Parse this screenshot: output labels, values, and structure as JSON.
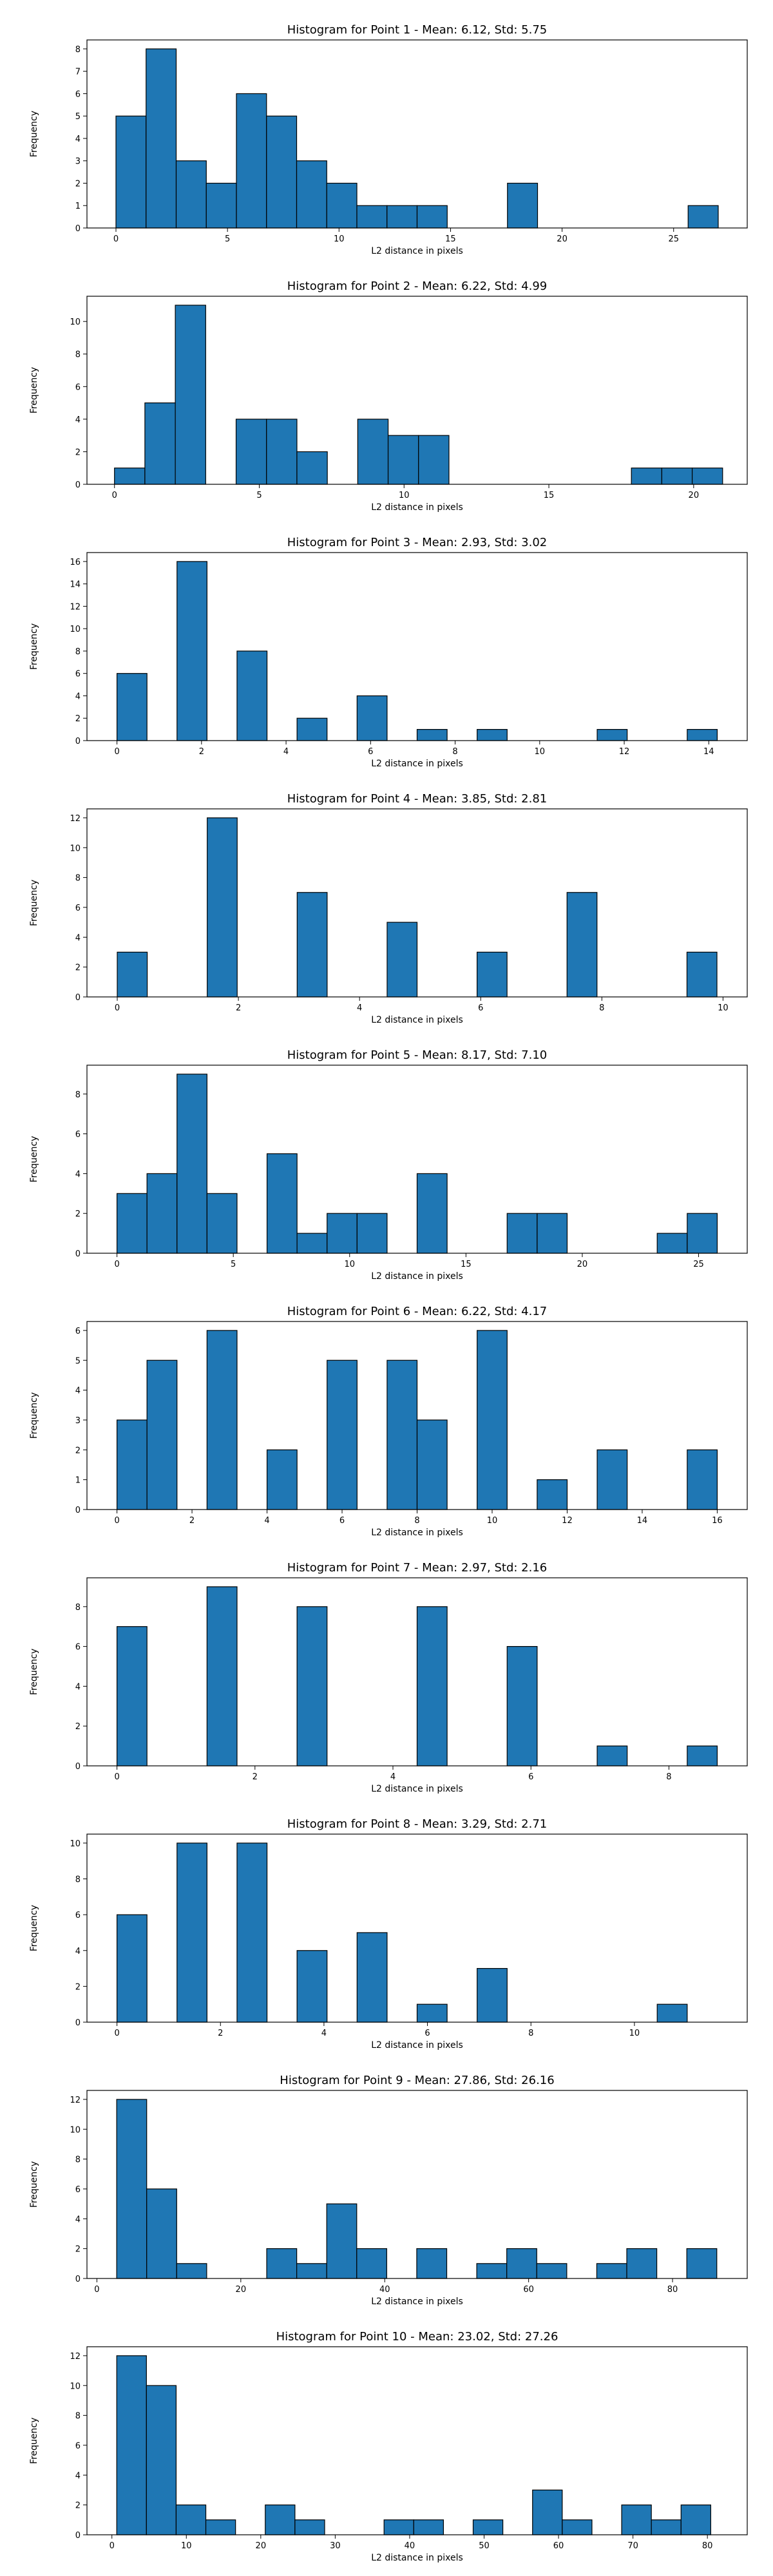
{
  "style": {
    "bar_color": "#1f77b4",
    "edge_color": "#000000",
    "background": "#ffffff"
  },
  "chart_data": [
    {
      "type": "bar",
      "subtype": "histogram",
      "title": "Histogram for Point 1 - Mean: 6.12, Std: 5.75",
      "xlabel": "L2 distance in pixels",
      "ylabel": "Frequency",
      "xlim": [
        -1.3,
        28.3
      ],
      "ylim": [
        0,
        8.4
      ],
      "xticks": [
        0,
        5,
        10,
        15,
        20,
        25
      ],
      "yticks": [
        0,
        1,
        2,
        3,
        4,
        5,
        6,
        7,
        8
      ],
      "bin_start": 0.0,
      "bin_width": 1.35,
      "values": [
        5,
        8,
        3,
        2,
        6,
        5,
        3,
        2,
        1,
        1,
        1,
        0,
        0,
        2,
        0,
        0,
        0,
        0,
        0,
        1
      ]
    },
    {
      "type": "bar",
      "subtype": "histogram",
      "title": "Histogram for Point 2 - Mean: 6.22, Std: 4.99",
      "xlabel": "L2 distance in pixels",
      "ylabel": "Frequency",
      "xlim": [
        -0.95,
        21.85
      ],
      "ylim": [
        0,
        11.55
      ],
      "xticks": [
        0,
        5,
        10,
        15,
        20
      ],
      "yticks": [
        0,
        2,
        4,
        6,
        8,
        10
      ],
      "bin_start": 0.0,
      "bin_width": 1.05,
      "values": [
        1,
        5,
        11,
        0,
        4,
        4,
        2,
        0,
        4,
        3,
        3,
        0,
        0,
        0,
        0,
        0,
        0,
        1,
        1,
        1
      ]
    },
    {
      "type": "bar",
      "subtype": "histogram",
      "title": "Histogram for Point 3 - Mean: 2.93, Std: 3.02",
      "xlabel": "L2 distance in pixels",
      "ylabel": "Frequency",
      "xlim": [
        -0.71,
        14.91
      ],
      "ylim": [
        0,
        16.8
      ],
      "xticks": [
        0,
        2,
        4,
        6,
        8,
        10,
        12,
        14
      ],
      "yticks": [
        0,
        2,
        4,
        6,
        8,
        10,
        12,
        14,
        16
      ],
      "bin_start": 0.0,
      "bin_width": 0.71,
      "values": [
        6,
        0,
        16,
        0,
        8,
        0,
        2,
        0,
        4,
        0,
        1,
        0,
        1,
        0,
        0,
        0,
        1,
        0,
        0,
        1
      ]
    },
    {
      "type": "bar",
      "subtype": "histogram",
      "title": "Histogram for Point 4 - Mean: 3.85, Std: 2.81",
      "xlabel": "L2 distance in pixels",
      "ylabel": "Frequency",
      "xlim": [
        -0.5,
        10.4
      ],
      "ylim": [
        0,
        12.6
      ],
      "xticks": [
        0,
        2,
        4,
        6,
        8,
        10
      ],
      "yticks": [
        0,
        2,
        4,
        6,
        8,
        10,
        12
      ],
      "bin_start": 0.0,
      "bin_width": 0.495,
      "values": [
        3,
        0,
        0,
        12,
        0,
        0,
        7,
        0,
        0,
        5,
        0,
        0,
        3,
        0,
        0,
        7,
        0,
        0,
        0,
        3
      ]
    },
    {
      "type": "bar",
      "subtype": "histogram",
      "title": "Histogram for Point 5 - Mean: 8.17, Std: 7.10",
      "xlabel": "L2 distance in pixels",
      "ylabel": "Frequency",
      "xlim": [
        -1.29,
        27.09
      ],
      "ylim": [
        0,
        9.45
      ],
      "xticks": [
        0,
        5,
        10,
        15,
        20,
        25
      ],
      "yticks": [
        0,
        2,
        4,
        6,
        8
      ],
      "bin_start": 0.0,
      "bin_width": 1.29,
      "values": [
        3,
        4,
        9,
        3,
        0,
        5,
        1,
        2,
        2,
        0,
        4,
        0,
        0,
        2,
        2,
        0,
        0,
        0,
        1,
        2
      ]
    },
    {
      "type": "bar",
      "subtype": "histogram",
      "title": "Histogram for Point 6 - Mean: 6.22, Std: 4.17",
      "xlabel": "L2 distance in pixels",
      "ylabel": "Frequency",
      "xlim": [
        -0.8,
        16.8
      ],
      "ylim": [
        0,
        6.3
      ],
      "xticks": [
        0,
        2,
        4,
        6,
        8,
        10,
        12,
        14,
        16
      ],
      "yticks": [
        0,
        1,
        2,
        3,
        4,
        5,
        6
      ],
      "bin_start": 0.0,
      "bin_width": 0.8,
      "values": [
        3,
        5,
        0,
        6,
        0,
        2,
        0,
        5,
        0,
        5,
        3,
        0,
        6,
        0,
        1,
        0,
        2,
        0,
        0,
        2
      ]
    },
    {
      "type": "bar",
      "subtype": "histogram",
      "title": "Histogram for Point 7 - Mean: 2.97, Std: 2.16",
      "xlabel": "L2 distance in pixels",
      "ylabel": "Frequency",
      "xlim": [
        -0.435,
        9.135
      ],
      "ylim": [
        0,
        9.45
      ],
      "xticks": [
        0,
        2,
        4,
        6,
        8
      ],
      "yticks": [
        0,
        2,
        4,
        6,
        8
      ],
      "bin_start": 0.0,
      "bin_width": 0.435,
      "values": [
        7,
        0,
        0,
        9,
        0,
        0,
        8,
        0,
        0,
        0,
        8,
        0,
        0,
        6,
        0,
        0,
        1,
        0,
        0,
        1
      ]
    },
    {
      "type": "bar",
      "subtype": "histogram",
      "title": "Histogram for Point 8 - Mean: 3.29, Std: 2.71",
      "xlabel": "L2 distance in pixels",
      "ylabel": "Frequency",
      "xlim": [
        -0.58,
        12.18
      ],
      "ylim": [
        0,
        10.5
      ],
      "xticks": [
        0,
        2,
        4,
        6,
        8,
        10
      ],
      "yticks": [
        0,
        2,
        4,
        6,
        8,
        10
      ],
      "bin_start": 0.0,
      "bin_width": 0.58,
      "values": [
        6,
        0,
        10,
        0,
        10,
        0,
        4,
        0,
        5,
        0,
        1,
        0,
        3,
        0,
        0,
        0,
        0,
        0,
        1,
        0
      ]
    },
    {
      "type": "bar",
      "subtype": "histogram",
      "title": "Histogram for Point 9 - Mean: 27.86, Std: 26.16",
      "xlabel": "L2 distance in pixels",
      "ylabel": "Frequency",
      "xlim": [
        -1.38,
        90.38
      ],
      "ylim": [
        0,
        12.6
      ],
      "xticks": [
        0,
        20,
        40,
        60,
        80
      ],
      "yticks": [
        0,
        2,
        4,
        6,
        8,
        10,
        12
      ],
      "bin_start": 2.75,
      "bin_width": 4.17,
      "values": [
        12,
        6,
        1,
        0,
        0,
        2,
        1,
        5,
        2,
        0,
        2,
        0,
        1,
        2,
        1,
        0,
        1,
        2,
        0,
        2
      ]
    },
    {
      "type": "bar",
      "subtype": "histogram",
      "title": "Histogram for Point 10 - Mean: 23.02, Std: 27.26",
      "xlabel": "L2 distance in pixels",
      "ylabel": "Frequency",
      "xlim": [
        -3.35,
        85.35
      ],
      "ylim": [
        0,
        12.6
      ],
      "xticks": [
        0,
        10,
        20,
        30,
        40,
        50,
        60,
        70,
        80
      ],
      "yticks": [
        0,
        2,
        4,
        6,
        8,
        10,
        12
      ],
      "bin_start": 0.65,
      "bin_width": 3.99,
      "values": [
        12,
        10,
        2,
        1,
        0,
        2,
        1,
        0,
        0,
        1,
        1,
        0,
        1,
        0,
        3,
        1,
        0,
        2,
        1,
        2
      ]
    }
  ]
}
